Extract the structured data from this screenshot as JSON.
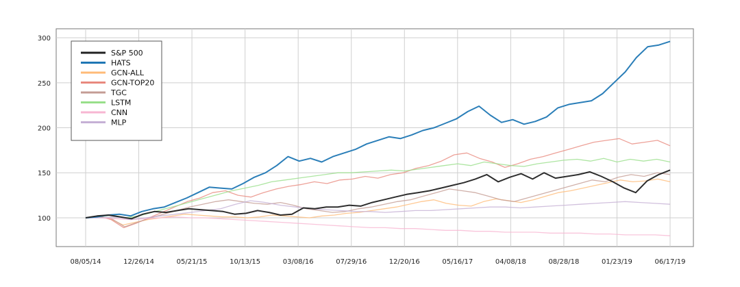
{
  "chart_data": {
    "type": "line",
    "title": "",
    "xlabel": "",
    "ylabel": "",
    "ylim": [
      68,
      310
    ],
    "x_ticks": [
      "08/05/14",
      "12/26/14",
      "05/21/15",
      "10/13/15",
      "03/08/16",
      "07/29/16",
      "12/20/16",
      "05/16/17",
      "04/08/18",
      "08/28/18",
      "01/23/19",
      "06/17/19"
    ],
    "y_ticks": [
      100,
      150,
      200,
      250,
      300
    ],
    "grid": true,
    "legend_position": "upper-left",
    "series": [
      {
        "name": "S&P 500",
        "color": "#222222",
        "values": [
          100,
          102,
          103,
          101,
          99,
          104,
          107,
          106,
          108,
          110,
          109,
          108,
          107,
          104,
          105,
          108,
          106,
          103,
          104,
          111,
          110,
          112,
          112,
          114,
          113,
          117,
          120,
          123,
          126,
          128,
          130,
          133,
          136,
          139,
          143,
          148,
          140,
          145,
          149,
          143,
          150,
          144,
          146,
          148,
          151,
          146,
          140,
          133,
          128,
          141,
          148,
          153
        ]
      },
      {
        "name": "HATS",
        "color": "#1f77b4",
        "values": [
          100,
          101,
          103,
          104,
          102,
          107,
          110,
          112,
          117,
          122,
          128,
          134,
          133,
          132,
          138,
          145,
          150,
          158,
          168,
          163,
          166,
          162,
          168,
          172,
          176,
          182,
          186,
          190,
          188,
          192,
          197,
          200,
          205,
          210,
          218,
          224,
          214,
          206,
          209,
          204,
          207,
          212,
          222,
          226,
          228,
          230,
          238,
          250,
          262,
          278,
          290,
          292,
          296
        ]
      },
      {
        "name": "GCN-ALL",
        "color": "#ffbb78",
        "values": [
          100,
          101,
          99,
          92,
          95,
          98,
          100,
          102,
          104,
          103,
          102,
          101,
          101,
          100,
          101,
          103,
          102,
          101,
          100,
          102,
          103,
          105,
          106,
          108,
          110,
          112,
          115,
          118,
          120,
          116,
          114,
          113,
          118,
          121,
          119,
          117,
          120,
          124,
          128,
          130,
          133,
          136,
          139,
          142,
          140,
          141,
          143,
          140
        ]
      },
      {
        "name": "GCN-TOP20",
        "color": "#e8897e",
        "values": [
          100,
          102,
          98,
          89,
          94,
          100,
          106,
          112,
          118,
          122,
          128,
          130,
          125,
          123,
          128,
          132,
          135,
          137,
          140,
          138,
          142,
          143,
          146,
          144,
          148,
          150,
          155,
          158,
          163,
          170,
          172,
          166,
          162,
          156,
          160,
          165,
          168,
          172,
          176,
          180,
          184,
          186,
          188,
          182,
          184,
          186,
          180
        ]
      },
      {
        "name": "TGC",
        "color": "#c49c94",
        "values": [
          100,
          101,
          99,
          90,
          95,
          100,
          104,
          108,
          112,
          115,
          118,
          120,
          118,
          116,
          115,
          117,
          114,
          110,
          108,
          106,
          107,
          110,
          112,
          115,
          118,
          120,
          124,
          128,
          132,
          130,
          128,
          124,
          120,
          118,
          122,
          126,
          130,
          134,
          138,
          142,
          140,
          145,
          148,
          146,
          150,
          148
        ]
      },
      {
        "name": "LSTM",
        "color": "#98df8a",
        "values": [
          100,
          101,
          103,
          100,
          102,
          106,
          110,
          114,
          118,
          122,
          126,
          130,
          133,
          136,
          140,
          142,
          144,
          146,
          148,
          150,
          150,
          151,
          152,
          153,
          152,
          154,
          156,
          158,
          160,
          158,
          162,
          160,
          158,
          157,
          160,
          162,
          164,
          165,
          163,
          166,
          162,
          165,
          163,
          165,
          162
        ]
      },
      {
        "name": "CNN",
        "color": "#f7b6d2",
        "values": [
          100,
          100,
          99,
          98,
          99,
          100,
          101,
          100,
          100,
          99,
          98,
          97,
          96,
          95,
          94,
          93,
          92,
          91,
          90,
          89,
          89,
          88,
          88,
          87,
          86,
          86,
          85,
          85,
          84,
          84,
          84,
          83,
          83,
          83,
          82,
          82,
          81,
          81,
          81,
          80
        ]
      },
      {
        "name": "MLP",
        "color": "#c5b0d5",
        "values": [
          100,
          100,
          101,
          98,
          100,
          102,
          104,
          106,
          108,
          110,
          115,
          119,
          117,
          114,
          112,
          110,
          109,
          108,
          107,
          107,
          106,
          107,
          108,
          108,
          109,
          110,
          111,
          112,
          112,
          111,
          112,
          113,
          114,
          115,
          116,
          117,
          118,
          117,
          116,
          115
        ]
      }
    ]
  }
}
